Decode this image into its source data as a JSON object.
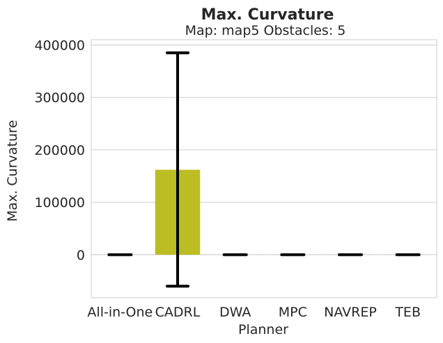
{
  "chart_data": {
    "type": "bar",
    "title": "Max. Curvature",
    "subtitle": "Map: map5 Obstacles: 5",
    "xlabel": "Planner",
    "ylabel": "Max. Curvature",
    "categories": [
      "All-in-One",
      "CADRL",
      "DWA",
      "MPC",
      "NAVREP",
      "TEB"
    ],
    "values": [
      0,
      162000,
      0,
      0,
      0,
      0
    ],
    "error_low": [
      0,
      -60000,
      0,
      0,
      0,
      0
    ],
    "error_high": [
      0,
      385000,
      0,
      0,
      0,
      0
    ],
    "bar_colors": [
      "#1f77b4",
      "#bcbd22",
      "#17becf",
      "#ff7f0e",
      "#2ca02c",
      "#9467bd"
    ],
    "yticks": [
      0,
      100000,
      200000,
      300000,
      400000
    ],
    "ytick_labels": [
      "0",
      "100000",
      "200000",
      "300000",
      "400000"
    ],
    "ylim": [
      -82000,
      410000
    ],
    "grid": true,
    "grid_color": "#cccccc",
    "error_color": "#000000"
  }
}
